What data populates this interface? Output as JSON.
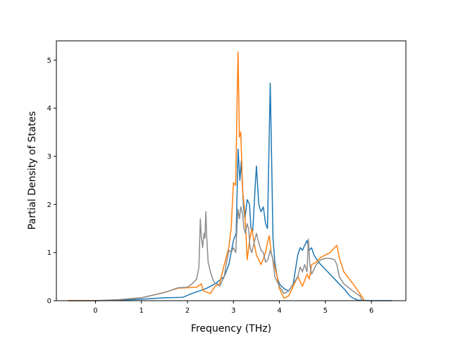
{
  "chart_data": {
    "type": "line",
    "title": "",
    "xlabel": "Frequency (THz)",
    "ylabel": "Partial Density of States",
    "xlim": [
      -0.85,
      6.75
    ],
    "ylim": [
      0,
      5.4
    ],
    "xticks": [
      0,
      1,
      2,
      3,
      4,
      5,
      6
    ],
    "yticks": [
      0,
      1,
      2,
      3,
      4,
      5
    ],
    "grid": false,
    "legend": "none",
    "series": [
      {
        "color": "#1f77b4",
        "points": [
          [
            -0.6,
            0
          ],
          [
            0,
            0
          ],
          [
            0.5,
            0.01
          ],
          [
            1.0,
            0.03
          ],
          [
            1.5,
            0.06
          ],
          [
            1.9,
            0.07
          ],
          [
            2.1,
            0.15
          ],
          [
            2.4,
            0.25
          ],
          [
            2.6,
            0.35
          ],
          [
            2.8,
            0.5
          ],
          [
            2.9,
            0.75
          ],
          [
            3.0,
            1.25
          ],
          [
            3.06,
            1.4
          ],
          [
            3.1,
            3.15
          ],
          [
            3.14,
            2.5
          ],
          [
            3.17,
            2.9
          ],
          [
            3.22,
            1.95
          ],
          [
            3.25,
            1.7
          ],
          [
            3.3,
            2.1
          ],
          [
            3.35,
            2.0
          ],
          [
            3.38,
            1.5
          ],
          [
            3.42,
            1.45
          ],
          [
            3.48,
            2.5
          ],
          [
            3.5,
            2.8
          ],
          [
            3.55,
            2.0
          ],
          [
            3.6,
            1.85
          ],
          [
            3.65,
            1.95
          ],
          [
            3.7,
            1.6
          ],
          [
            3.74,
            1.5
          ],
          [
            3.77,
            3.0
          ],
          [
            3.8,
            4.52
          ],
          [
            3.83,
            3.0
          ],
          [
            3.86,
            1.3
          ],
          [
            3.9,
            0.8
          ],
          [
            3.95,
            0.5
          ],
          [
            4.0,
            0.35
          ],
          [
            4.1,
            0.25
          ],
          [
            4.2,
            0.2
          ],
          [
            4.3,
            0.35
          ],
          [
            4.4,
            0.95
          ],
          [
            4.45,
            1.1
          ],
          [
            4.5,
            1.05
          ],
          [
            4.55,
            1.15
          ],
          [
            4.6,
            1.25
          ],
          [
            4.65,
            1.05
          ],
          [
            4.7,
            1.1
          ],
          [
            4.75,
            0.95
          ],
          [
            4.85,
            0.8
          ],
          [
            5.0,
            0.65
          ],
          [
            5.2,
            0.45
          ],
          [
            5.4,
            0.25
          ],
          [
            5.55,
            0.08
          ],
          [
            5.7,
            0.01
          ],
          [
            6.0,
            0
          ],
          [
            6.45,
            0
          ]
        ]
      },
      {
        "color": "#ff7f0e",
        "points": [
          [
            -0.6,
            0
          ],
          [
            0,
            0
          ],
          [
            0.5,
            0.02
          ],
          [
            1.0,
            0.06
          ],
          [
            1.5,
            0.17
          ],
          [
            1.8,
            0.26
          ],
          [
            2.0,
            0.27
          ],
          [
            2.2,
            0.28
          ],
          [
            2.3,
            0.35
          ],
          [
            2.35,
            0.2
          ],
          [
            2.5,
            0.15
          ],
          [
            2.6,
            0.3
          ],
          [
            2.7,
            0.35
          ],
          [
            2.8,
            0.75
          ],
          [
            2.9,
            1.1
          ],
          [
            2.95,
            1.5
          ],
          [
            3.0,
            2.45
          ],
          [
            3.05,
            2.4
          ],
          [
            3.08,
            4.2
          ],
          [
            3.1,
            5.17
          ],
          [
            3.13,
            3.4
          ],
          [
            3.16,
            3.5
          ],
          [
            3.2,
            2.3
          ],
          [
            3.25,
            1.8
          ],
          [
            3.28,
            1.25
          ],
          [
            3.3,
            0.85
          ],
          [
            3.35,
            1.25
          ],
          [
            3.4,
            1.5
          ],
          [
            3.45,
            1.2
          ],
          [
            3.5,
            0.95
          ],
          [
            3.6,
            0.75
          ],
          [
            3.7,
            1.0
          ],
          [
            3.75,
            1.25
          ],
          [
            3.78,
            1.35
          ],
          [
            3.82,
            1.0
          ],
          [
            3.9,
            0.7
          ],
          [
            3.95,
            0.5
          ],
          [
            4.0,
            0.25
          ],
          [
            4.1,
            0.05
          ],
          [
            4.2,
            0.1
          ],
          [
            4.3,
            0.3
          ],
          [
            4.4,
            0.5
          ],
          [
            4.5,
            0.3
          ],
          [
            4.6,
            0.55
          ],
          [
            4.65,
            0.45
          ],
          [
            4.7,
            0.75
          ],
          [
            4.8,
            0.8
          ],
          [
            4.9,
            0.9
          ],
          [
            5.0,
            0.95
          ],
          [
            5.1,
            1.0
          ],
          [
            5.2,
            1.1
          ],
          [
            5.25,
            1.15
          ],
          [
            5.3,
            0.9
          ],
          [
            5.4,
            0.6
          ],
          [
            5.6,
            0.35
          ],
          [
            5.75,
            0.15
          ],
          [
            5.85,
            0.0
          ]
        ]
      },
      {
        "color": "#8c8c8c",
        "points": [
          [
            0,
            0
          ],
          [
            0.5,
            0.02
          ],
          [
            1.0,
            0.06
          ],
          [
            1.5,
            0.17
          ],
          [
            1.8,
            0.27
          ],
          [
            2.0,
            0.28
          ],
          [
            2.1,
            0.35
          ],
          [
            2.2,
            0.45
          ],
          [
            2.25,
            0.7
          ],
          [
            2.28,
            1.7
          ],
          [
            2.3,
            1.35
          ],
          [
            2.33,
            1.1
          ],
          [
            2.36,
            1.4
          ],
          [
            2.38,
            1.3
          ],
          [
            2.4,
            1.85
          ],
          [
            2.42,
            1.3
          ],
          [
            2.45,
            0.8
          ],
          [
            2.5,
            0.6
          ],
          [
            2.55,
            0.45
          ],
          [
            2.6,
            0.35
          ],
          [
            2.65,
            0.35
          ],
          [
            2.7,
            0.3
          ],
          [
            2.8,
            0.5
          ],
          [
            2.85,
            0.8
          ],
          [
            2.9,
            1.05
          ],
          [
            2.95,
            1.0
          ],
          [
            3.0,
            1.1
          ],
          [
            3.05,
            1.0
          ],
          [
            3.08,
            1.6
          ],
          [
            3.1,
            1.9
          ],
          [
            3.13,
            1.7
          ],
          [
            3.16,
            1.95
          ],
          [
            3.2,
            1.8
          ],
          [
            3.23,
            1.5
          ],
          [
            3.26,
            1.4
          ],
          [
            3.3,
            1.6
          ],
          [
            3.33,
            1.5
          ],
          [
            3.36,
            1.1
          ],
          [
            3.4,
            1.0
          ],
          [
            3.45,
            1.2
          ],
          [
            3.5,
            1.4
          ],
          [
            3.55,
            1.2
          ],
          [
            3.6,
            1.05
          ],
          [
            3.65,
            1.0
          ],
          [
            3.7,
            0.8
          ],
          [
            3.75,
            0.85
          ],
          [
            3.8,
            1.05
          ],
          [
            3.85,
            0.9
          ],
          [
            3.9,
            0.5
          ],
          [
            4.0,
            0.3
          ],
          [
            4.1,
            0.15
          ],
          [
            4.2,
            0.2
          ],
          [
            4.3,
            0.35
          ],
          [
            4.4,
            0.5
          ],
          [
            4.45,
            0.7
          ],
          [
            4.5,
            0.6
          ],
          [
            4.55,
            0.75
          ],
          [
            4.6,
            0.6
          ],
          [
            4.63,
            1.28
          ],
          [
            4.66,
            0.75
          ],
          [
            4.7,
            0.55
          ],
          [
            4.8,
            0.75
          ],
          [
            4.9,
            0.85
          ],
          [
            5.0,
            0.88
          ],
          [
            5.1,
            0.88
          ],
          [
            5.2,
            0.85
          ],
          [
            5.25,
            0.75
          ],
          [
            5.3,
            0.5
          ],
          [
            5.4,
            0.35
          ],
          [
            5.6,
            0.2
          ],
          [
            5.75,
            0.1
          ],
          [
            5.8,
            0.0
          ]
        ]
      }
    ]
  }
}
